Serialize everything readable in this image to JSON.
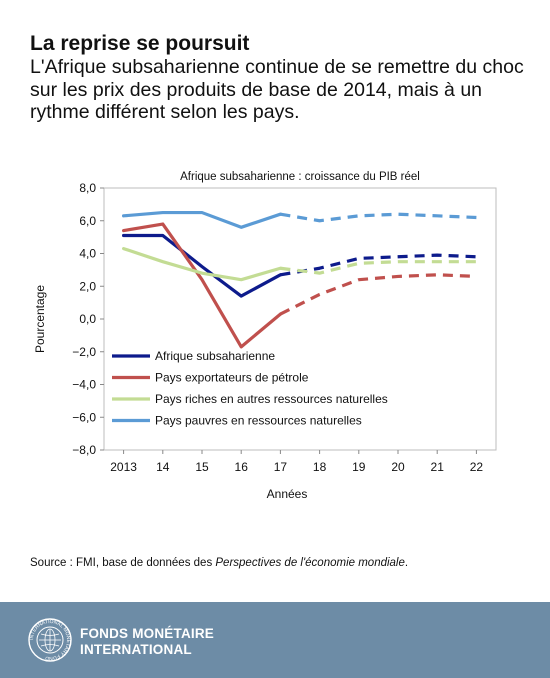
{
  "header": {
    "title": "La reprise se poursuit",
    "subtitle": "L'Afrique subsaharienne continue de se remettre du choc sur les prix des produits de base de 2014, mais à un rythme différent selon les pays."
  },
  "chart_data": {
    "type": "line",
    "title": "Afrique subsaharienne : croissance du PIB réel",
    "xlabel": "Années",
    "ylabel": "Pourcentage",
    "categories": [
      "2013",
      "14",
      "15",
      "16",
      "17",
      "18",
      "19",
      "20",
      "21",
      "22"
    ],
    "ylim": [
      -8,
      8
    ],
    "yticks": [
      "8,0",
      "6,0",
      "4,0",
      "2,0",
      "0,0",
      "−2,0",
      "−4,0",
      "−6,0",
      "−8,0"
    ],
    "projection_starts_at": "17",
    "line_style": "solid through 17, dashed from 17 onward",
    "grid": false,
    "legend_position": "lower-left",
    "series": [
      {
        "name": "Afrique subsaharienne",
        "color": "#0d1b8c",
        "values": [
          5.1,
          5.1,
          3.2,
          1.4,
          2.7,
          3.1,
          3.7,
          3.8,
          3.9,
          3.8
        ]
      },
      {
        "name": "Pays exportateurs de pétrole",
        "color": "#c0504d",
        "values": [
          5.4,
          5.8,
          2.4,
          -1.7,
          0.3,
          1.5,
          2.4,
          2.6,
          2.7,
          2.6
        ]
      },
      {
        "name": "Pays riches en autres ressources naturelles",
        "color": "#c3dc94",
        "values": [
          4.3,
          3.5,
          2.8,
          2.4,
          3.1,
          2.8,
          3.4,
          3.5,
          3.5,
          3.5
        ]
      },
      {
        "name": "Pays pauvres en ressources naturelles",
        "color": "#5b9bd5",
        "values": [
          6.3,
          6.5,
          6.5,
          5.6,
          6.4,
          6.0,
          6.3,
          6.4,
          6.3,
          6.2
        ]
      }
    ]
  },
  "source": {
    "prefix": "Source : FMI, base de données des ",
    "italic": "Perspectives de l'économie mondiale",
    "suffix": "."
  },
  "footer": {
    "line1": "FONDS MONÉTAIRE",
    "line2": "INTERNATIONAL",
    "background": "#6d8ca6",
    "logo_icon": "imf-seal-icon",
    "seal_text": "INTERNATIONAL MONETARY FUND"
  }
}
